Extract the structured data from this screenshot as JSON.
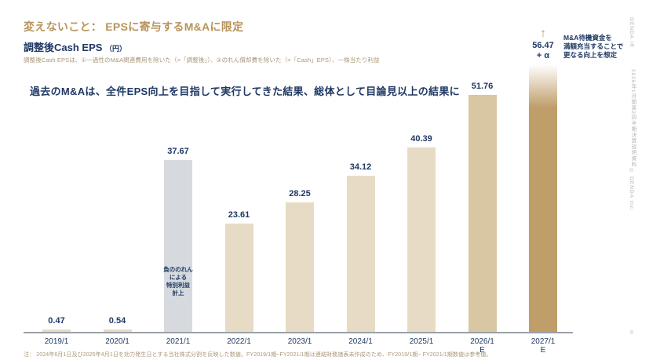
{
  "page": {
    "title": "変えないこと：  EPSに寄与するM&Aに限定",
    "subtitle": "調整後Cash EPS",
    "subtitle_unit": "（円）",
    "description": "調整後Cash EPSは、①一過性のM&A関連費用を除いた（=「調整後」）、②のれん償却費を除いた（=「Cash」EPS）、一株当たり利益",
    "key_message": "過去のM&Aは、全件EPS向上を目指して実行してきた結果、総体として目論見以上の結果に",
    "footnote": "注： 2024年6月1日及び2025年4月1日を効力発生日とする当社株式分割を反映した数値。FY2019/1期~FY2021/1期は連結財務諸表未作成のため、FY2019/1期~ FY2021/1期数値は参考値。",
    "page_number": "8"
  },
  "side_margin": {
    "label_top": "GENDA IR",
    "label_middle": "2026年1月期第2四半期決算説明資料",
    "label_bottom": "© GENDA Inc."
  },
  "annotation": {
    "arrow_icon": "↑",
    "lines": [
      "M&A待機資金を",
      "満額充当することで",
      "更なる向上を想定"
    ]
  },
  "colors": {
    "accent_gold": "#b8935a",
    "navy": "#1f3864",
    "bar_beige": "#e7dbc5",
    "bar_gray": "#d6dade",
    "bar_tan": "#d9c6a2",
    "bar_brown": "#bf9e6a",
    "axis_gray": "#9ba1a7"
  },
  "chart_data": {
    "type": "bar",
    "title": "調整後Cash EPS（円）",
    "xlabel": "",
    "ylabel": "",
    "ylim": [
      0,
      58
    ],
    "grid": false,
    "legend": "none",
    "categories": [
      "2019/1",
      "2020/1",
      "2021/1",
      "2022/1",
      "2023/1",
      "2024/1",
      "2025/1",
      "2026/1 E",
      "2027/1 E"
    ],
    "values": [
      0.47,
      0.54,
      37.67,
      23.61,
      28.25,
      34.12,
      40.39,
      51.76,
      56.47
    ],
    "bars": [
      {
        "category": "2019/1",
        "value": 0.47,
        "label": "0.47",
        "style": "beige"
      },
      {
        "category": "2020/1",
        "value": 0.54,
        "label": "0.54",
        "style": "beige"
      },
      {
        "category": "2021/1",
        "value": 37.67,
        "label": "37.67",
        "style": "gray",
        "note": "負ののれん\nによる\n特別利益\n計上"
      },
      {
        "category": "2022/1",
        "value": 23.61,
        "label": "23.61",
        "style": "beige"
      },
      {
        "category": "2023/1",
        "value": 28.25,
        "label": "28.25",
        "style": "beige"
      },
      {
        "category": "2024/1",
        "value": 34.12,
        "label": "34.12",
        "style": "beige"
      },
      {
        "category": "2025/1",
        "value": 40.39,
        "label": "40.39",
        "style": "beige"
      },
      {
        "category": "2026/1\nE",
        "value": 51.76,
        "label": "51.76",
        "style": "tan"
      },
      {
        "category": "2027/1\nE",
        "value": 56.47,
        "label": "56.47\n+ α",
        "style": "brown",
        "gradient_top": true,
        "arrow": true
      }
    ]
  }
}
